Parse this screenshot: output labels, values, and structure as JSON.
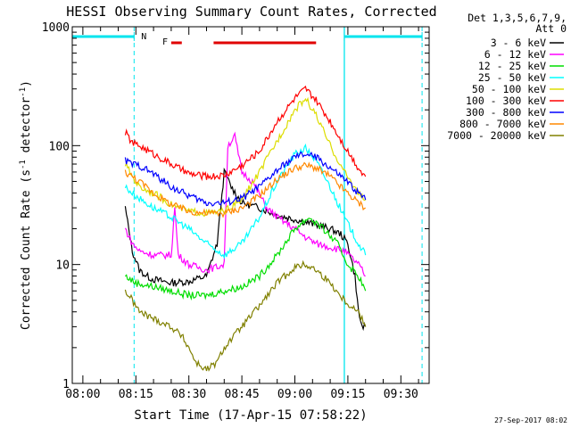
{
  "chart_data": {
    "type": "line",
    "title": "HESSI Observing Summary Count Rates, Corrected",
    "xlabel": "Start Time (17-Apr-15 07:58:22)",
    "ylabel_parts": [
      "Corrected Count Rate (s",
      "-1",
      " detector",
      "-1",
      ")"
    ],
    "yscale": "log",
    "ylim": [
      1,
      1000
    ],
    "xlim_minutes": [
      -3,
      98
    ],
    "x_tick_labels": [
      "08:00",
      "08:15",
      "08:30",
      "08:45",
      "09:00",
      "09:15",
      "09:30"
    ],
    "y_tick_labels": [
      "1",
      "10",
      "100",
      "1000"
    ],
    "legend_header": [
      "Det 1,3,5,6,7,9,",
      "Att 0"
    ],
    "footer": "27-Sep-2017 08:02",
    "flags": {
      "night_label": "N",
      "flare_label": "F",
      "night_color": "#00e5ee",
      "flare_color": "#e00000"
    },
    "series": [
      {
        "name": "3 - 6 keV",
        "color": "#000000",
        "points": [
          [
            12,
            30
          ],
          [
            14,
            13
          ],
          [
            16,
            9
          ],
          [
            18,
            8
          ],
          [
            20,
            7.5
          ],
          [
            25,
            7
          ],
          [
            30,
            7.2
          ],
          [
            35,
            8
          ],
          [
            38,
            15
          ],
          [
            40,
            60
          ],
          [
            42,
            45
          ],
          [
            45,
            33
          ],
          [
            50,
            30
          ],
          [
            55,
            26
          ],
          [
            60,
            24
          ],
          [
            65,
            22
          ],
          [
            70,
            20
          ],
          [
            73,
            18
          ],
          [
            75,
            15
          ],
          [
            77,
            8
          ],
          [
            78,
            4
          ],
          [
            79,
            3
          ],
          [
            80,
            3
          ]
        ]
      },
      {
        "name": "6 - 12 keV",
        "color": "#ff00ff",
        "points": [
          [
            12,
            20
          ],
          [
            14,
            15
          ],
          [
            16,
            13
          ],
          [
            20,
            12
          ],
          [
            25,
            12
          ],
          [
            26,
            30
          ],
          [
            27,
            12
          ],
          [
            30,
            10
          ],
          [
            35,
            9
          ],
          [
            40,
            10
          ],
          [
            41,
            100
          ],
          [
            43,
            120
          ],
          [
            45,
            60
          ],
          [
            48,
            50
          ],
          [
            52,
            30
          ],
          [
            55,
            25
          ],
          [
            60,
            20
          ],
          [
            63,
            17
          ],
          [
            66,
            15
          ],
          [
            70,
            14
          ],
          [
            74,
            13
          ],
          [
            78,
            10
          ],
          [
            80,
            8
          ]
        ]
      },
      {
        "name": "12 - 25 keV",
        "color": "#00dd00",
        "points": [
          [
            12,
            8
          ],
          [
            15,
            7
          ],
          [
            20,
            6.5
          ],
          [
            25,
            6
          ],
          [
            30,
            5.5
          ],
          [
            35,
            5.5
          ],
          [
            40,
            6
          ],
          [
            45,
            6.5
          ],
          [
            50,
            8
          ],
          [
            55,
            12
          ],
          [
            60,
            20
          ],
          [
            64,
            25
          ],
          [
            68,
            20
          ],
          [
            72,
            15
          ],
          [
            75,
            10
          ],
          [
            78,
            8
          ],
          [
            80,
            6
          ]
        ]
      },
      {
        "name": "25 - 50 keV",
        "color": "#00ffff",
        "points": [
          [
            12,
            45
          ],
          [
            14,
            40
          ],
          [
            16,
            36
          ],
          [
            20,
            30
          ],
          [
            25,
            25
          ],
          [
            30,
            20
          ],
          [
            35,
            15
          ],
          [
            40,
            12
          ],
          [
            45,
            15
          ],
          [
            50,
            25
          ],
          [
            55,
            50
          ],
          [
            60,
            85
          ],
          [
            63,
            95
          ],
          [
            66,
            75
          ],
          [
            70,
            45
          ],
          [
            74,
            25
          ],
          [
            78,
            15
          ],
          [
            80,
            12
          ]
        ]
      },
      {
        "name": "50 - 100 keV",
        "color": "#dddd00",
        "points": [
          [
            12,
            70
          ],
          [
            14,
            55
          ],
          [
            16,
            45
          ],
          [
            20,
            40
          ],
          [
            25,
            32
          ],
          [
            30,
            28
          ],
          [
            35,
            27
          ],
          [
            40,
            28
          ],
          [
            45,
            35
          ],
          [
            50,
            60
          ],
          [
            55,
            110
          ],
          [
            60,
            200
          ],
          [
            63,
            250
          ],
          [
            66,
            180
          ],
          [
            70,
            100
          ],
          [
            74,
            60
          ],
          [
            78,
            40
          ],
          [
            80,
            35
          ]
        ]
      },
      {
        "name": "100 - 300 keV",
        "color": "#ff0000",
        "points": [
          [
            12,
            130
          ],
          [
            14,
            105
          ],
          [
            16,
            100
          ],
          [
            20,
            85
          ],
          [
            25,
            70
          ],
          [
            30,
            58
          ],
          [
            35,
            55
          ],
          [
            40,
            56
          ],
          [
            45,
            68
          ],
          [
            50,
            90
          ],
          [
            55,
            160
          ],
          [
            60,
            250
          ],
          [
            63,
            300
          ],
          [
            66,
            240
          ],
          [
            70,
            160
          ],
          [
            74,
            100
          ],
          [
            78,
            65
          ],
          [
            80,
            55
          ]
        ]
      },
      {
        "name": "300 - 800 keV",
        "color": "#0000ff",
        "points": [
          [
            12,
            75
          ],
          [
            14,
            70
          ],
          [
            16,
            68
          ],
          [
            20,
            58
          ],
          [
            25,
            45
          ],
          [
            30,
            38
          ],
          [
            35,
            33
          ],
          [
            40,
            33
          ],
          [
            45,
            36
          ],
          [
            50,
            45
          ],
          [
            55,
            62
          ],
          [
            60,
            80
          ],
          [
            63,
            85
          ],
          [
            66,
            80
          ],
          [
            70,
            65
          ],
          [
            74,
            52
          ],
          [
            78,
            40
          ],
          [
            80,
            35
          ]
        ]
      },
      {
        "name": "800 - 7000 keV",
        "color": "#ff8800",
        "points": [
          [
            12,
            60
          ],
          [
            14,
            55
          ],
          [
            16,
            50
          ],
          [
            20,
            40
          ],
          [
            25,
            32
          ],
          [
            30,
            28
          ],
          [
            35,
            27
          ],
          [
            40,
            27
          ],
          [
            45,
            30
          ],
          [
            50,
            38
          ],
          [
            55,
            52
          ],
          [
            60,
            65
          ],
          [
            63,
            68
          ],
          [
            66,
            65
          ],
          [
            70,
            55
          ],
          [
            74,
            42
          ],
          [
            78,
            33
          ],
          [
            80,
            30
          ]
        ]
      },
      {
        "name": "7000 - 20000 keV",
        "color": "#808000",
        "points": [
          [
            12,
            6
          ],
          [
            14,
            5
          ],
          [
            16,
            4
          ],
          [
            20,
            3.5
          ],
          [
            25,
            3
          ],
          [
            28,
            2.5
          ],
          [
            30,
            2
          ],
          [
            32,
            1.5
          ],
          [
            35,
            1.3
          ],
          [
            38,
            1.5
          ],
          [
            40,
            2
          ],
          [
            45,
            3
          ],
          [
            50,
            4.5
          ],
          [
            55,
            7
          ],
          [
            60,
            9.5
          ],
          [
            63,
            10
          ],
          [
            66,
            9
          ],
          [
            70,
            7
          ],
          [
            74,
            5
          ],
          [
            78,
            4
          ],
          [
            80,
            3
          ]
        ]
      }
    ]
  }
}
